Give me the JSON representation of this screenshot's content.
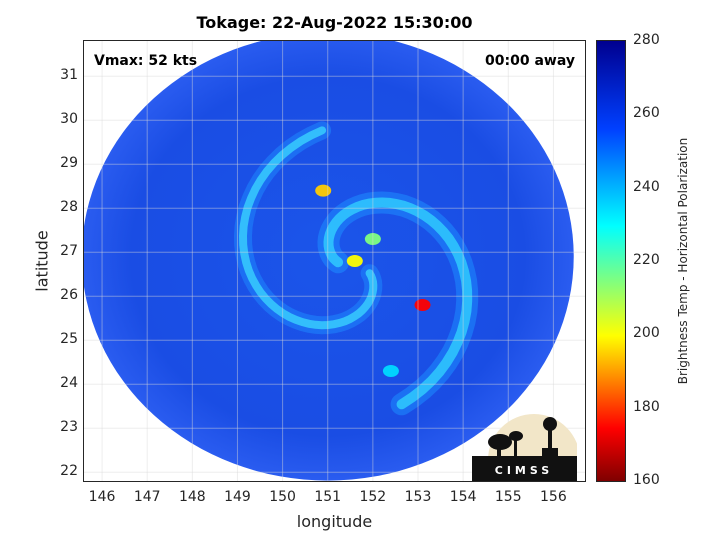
{
  "title": "Tokage: 22-Aug-2022 15:30:00",
  "overlay": {
    "vmax": "Vmax: 52 kts",
    "time_away": "00:00 away"
  },
  "axes": {
    "xlabel": "longitude",
    "ylabel": "latitude",
    "xlim": [
      145.6,
      156.7
    ],
    "ylim": [
      21.8,
      31.8
    ],
    "xticks": [
      "146",
      "147",
      "148",
      "149",
      "150",
      "151",
      "152",
      "153",
      "154",
      "155",
      "156"
    ],
    "yticks": [
      "22",
      "23",
      "24",
      "25",
      "26",
      "27",
      "28",
      "29",
      "30",
      "31"
    ],
    "grid": true
  },
  "colorbar": {
    "label": "Brightness Temp - Horizontal Polarization",
    "range": [
      160,
      280
    ],
    "ticks": [
      "280",
      "260",
      "240",
      "220",
      "200",
      "180",
      "160"
    ],
    "colormap": [
      "#7f0000",
      "#ff0000",
      "#ffff00",
      "#00ffff",
      "#0040ff",
      "#00008f"
    ]
  },
  "scene": {
    "background_color": "#1a4fe6",
    "swath_center": [
      151.0,
      26.9
    ],
    "storm_center": [
      151.5,
      26.7
    ],
    "features": [
      {
        "name": "outer-band-north",
        "lon": 150.9,
        "lat": 28.4,
        "tb": 195
      },
      {
        "name": "inner-core-1",
        "lon": 151.6,
        "lat": 26.8,
        "tb": 200
      },
      {
        "name": "inner-core-2",
        "lon": 152.0,
        "lat": 27.3,
        "tb": 215
      },
      {
        "name": "rainband-east",
        "lon": 153.1,
        "lat": 25.8,
        "tb": 175
      },
      {
        "name": "rainband-south",
        "lon": 152.4,
        "lat": 24.3,
        "tb": 235
      }
    ]
  },
  "logo": {
    "text": "CIMSS"
  }
}
